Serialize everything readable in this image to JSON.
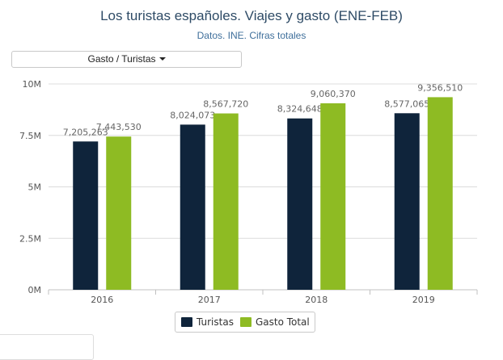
{
  "header": {
    "title": "Los turistas españoles. Viajes y gasto (ENE-FEB)",
    "subtitle": "Datos. INE. Cifras totales"
  },
  "controls": {
    "dropdown_label": "Gasto / Turistas"
  },
  "colors": {
    "turistas": "#0f243b",
    "gasto": "#8ebb23",
    "grid": "#dcdcdc",
    "axis": "#c0c0c0",
    "tick_text": "#555555",
    "label_text": "#666666"
  },
  "chart_data": {
    "type": "bar",
    "categories": [
      "2016",
      "2017",
      "2018",
      "2019"
    ],
    "series": [
      {
        "name": "Turistas",
        "values": [
          7205263,
          8024073,
          8324648,
          8577065
        ],
        "labels": [
          "7,205,263",
          "8,024,073",
          "8,324,648",
          "8,577,065"
        ]
      },
      {
        "name": "Gasto Total",
        "values": [
          7443530,
          8567720,
          9060370,
          9356510
        ],
        "labels": [
          "7,443,530",
          "8,567,720",
          "9,060,370",
          "9,356,510"
        ]
      }
    ],
    "title": "Los turistas españoles. Viajes y gasto (ENE-FEB)",
    "subtitle": "Datos. INE. Cifras totales",
    "ylim": [
      0,
      10000000
    ],
    "yticks": [
      0,
      2500000,
      5000000,
      7500000,
      10000000
    ],
    "ytick_labels": [
      "0M",
      "2.5M",
      "5M",
      "7.5M",
      "10M"
    ],
    "grid": true,
    "legend_position": "bottom-center"
  }
}
